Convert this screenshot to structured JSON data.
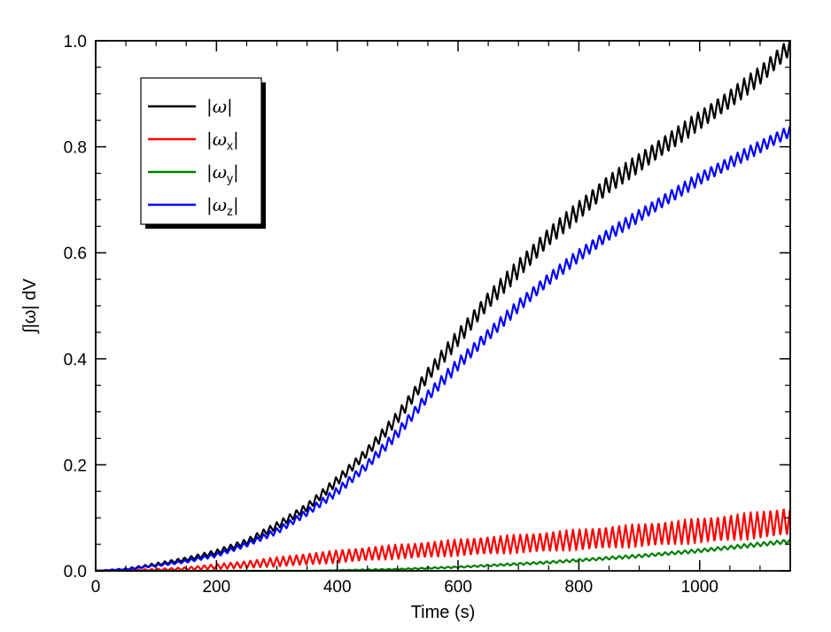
{
  "chart_data": {
    "type": "line",
    "title": "",
    "xlabel": "Time (s)",
    "ylabel": "∫|ω| dV",
    "xlim": [
      0,
      1150
    ],
    "ylim": [
      0,
      1.0
    ],
    "xticks": [
      0,
      200,
      400,
      600,
      800,
      1000
    ],
    "yticks": [
      0.0,
      0.2,
      0.4,
      0.6,
      0.8,
      1.0
    ],
    "xtick_labels": [
      "0",
      "200",
      "400",
      "600",
      "800",
      "1000"
    ],
    "ytick_labels": [
      "0.0",
      "0.2",
      "0.4",
      "0.6",
      "0.8",
      "1.0"
    ],
    "grid": false,
    "legend_position": "top-left",
    "oscillation_period": 10.9,
    "series": [
      {
        "name": "|ω|",
        "sub": "",
        "color": "#000000",
        "x": [
          0,
          50,
          100,
          150,
          200,
          250,
          300,
          350,
          400,
          450,
          500,
          550,
          600,
          650,
          700,
          750,
          800,
          850,
          900,
          950,
          1000,
          1050,
          1100,
          1150
        ],
        "y": [
          0,
          0.003,
          0.012,
          0.022,
          0.035,
          0.055,
          0.085,
          0.12,
          0.17,
          0.225,
          0.29,
          0.37,
          0.44,
          0.51,
          0.57,
          0.63,
          0.68,
          0.73,
          0.77,
          0.81,
          0.85,
          0.89,
          0.935,
          0.99
        ],
        "amplitude": [
          0,
          0.002,
          0.003,
          0.004,
          0.005,
          0.006,
          0.007,
          0.008,
          0.009,
          0.01,
          0.012,
          0.014,
          0.016,
          0.017,
          0.018,
          0.018,
          0.018,
          0.018,
          0.018,
          0.018,
          0.018,
          0.018,
          0.018,
          0.018
        ]
      },
      {
        "name": "|ω",
        "sub": "x",
        "color": "#ff0000",
        "x": [
          0,
          50,
          100,
          150,
          200,
          250,
          300,
          350,
          400,
          450,
          500,
          550,
          600,
          650,
          700,
          750,
          800,
          850,
          900,
          950,
          1000,
          1050,
          1100,
          1150
        ],
        "y": [
          0,
          0.001,
          0.002,
          0.004,
          0.008,
          0.012,
          0.017,
          0.022,
          0.027,
          0.032,
          0.036,
          0.04,
          0.044,
          0.048,
          0.051,
          0.055,
          0.059,
          0.063,
          0.067,
          0.071,
          0.076,
          0.081,
          0.087,
          0.094
        ],
        "amplitude": [
          0,
          0.001,
          0.002,
          0.003,
          0.005,
          0.007,
          0.009,
          0.011,
          0.012,
          0.013,
          0.014,
          0.015,
          0.016,
          0.017,
          0.018,
          0.019,
          0.02,
          0.021,
          0.022,
          0.023,
          0.024,
          0.025,
          0.026,
          0.027
        ]
      },
      {
        "name": "|ω",
        "sub": "y",
        "color": "#008000",
        "x": [
          0,
          50,
          100,
          150,
          200,
          250,
          300,
          350,
          400,
          450,
          500,
          550,
          600,
          650,
          700,
          750,
          800,
          850,
          900,
          950,
          1000,
          1050,
          1100,
          1150
        ],
        "y": [
          0,
          0,
          0,
          0,
          0,
          0,
          0,
          0,
          0.001,
          0.002,
          0.003,
          0.005,
          0.007,
          0.01,
          0.013,
          0.016,
          0.02,
          0.024,
          0.028,
          0.033,
          0.038,
          0.044,
          0.05,
          0.056
        ],
        "amplitude": [
          0,
          0,
          0,
          0,
          0,
          0,
          0,
          0,
          0.0005,
          0.001,
          0.001,
          0.0015,
          0.0015,
          0.002,
          0.002,
          0.0025,
          0.0025,
          0.003,
          0.003,
          0.003,
          0.0035,
          0.0035,
          0.004,
          0.004
        ]
      },
      {
        "name": "|ω",
        "sub": "z",
        "color": "#0000ff",
        "x": [
          0,
          50,
          100,
          150,
          200,
          250,
          300,
          350,
          400,
          450,
          500,
          550,
          600,
          650,
          700,
          750,
          800,
          850,
          900,
          950,
          1000,
          1050,
          1100,
          1150
        ],
        "y": [
          0,
          0.003,
          0.01,
          0.018,
          0.03,
          0.05,
          0.075,
          0.11,
          0.15,
          0.2,
          0.26,
          0.33,
          0.39,
          0.445,
          0.5,
          0.55,
          0.595,
          0.635,
          0.67,
          0.705,
          0.74,
          0.77,
          0.8,
          0.83
        ],
        "amplitude": [
          0,
          0.001,
          0.002,
          0.003,
          0.004,
          0.005,
          0.006,
          0.007,
          0.008,
          0.009,
          0.01,
          0.011,
          0.012,
          0.012,
          0.012,
          0.012,
          0.012,
          0.012,
          0.012,
          0.012,
          0.012,
          0.012,
          0.012,
          0.012
        ]
      }
    ]
  }
}
